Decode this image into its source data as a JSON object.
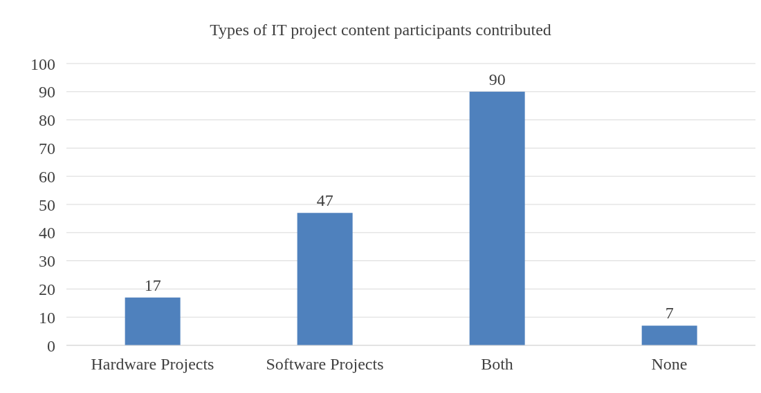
{
  "chart_data": {
    "type": "bar",
    "title": "Types of IT project content participants contributed",
    "categories": [
      "Hardware Projects",
      "Software Projects",
      "Both",
      "None"
    ],
    "values": [
      17,
      47,
      90,
      7
    ],
    "color": "#4f81bd",
    "ylim": [
      0,
      100
    ],
    "yticks": [
      0,
      10,
      20,
      30,
      40,
      50,
      60,
      70,
      80,
      90,
      100
    ],
    "grid": "y",
    "data_labels": true
  }
}
